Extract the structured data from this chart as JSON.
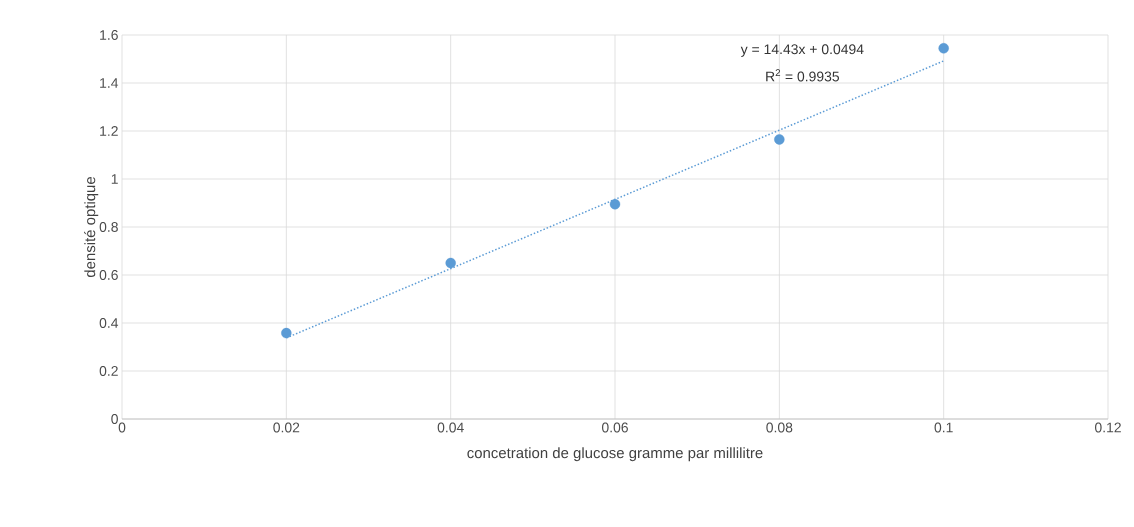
{
  "chart_data": {
    "type": "scatter",
    "xlabel": "concetration de glucose gramme par millilitre",
    "ylabel": "densité optique",
    "xlim": [
      0,
      0.12
    ],
    "xticks": [
      0,
      0.02,
      0.04,
      0.06,
      0.08,
      0.1,
      0.12
    ],
    "ylim": [
      0,
      1.6
    ],
    "yticks": [
      0,
      0.2,
      0.4,
      0.6,
      0.8,
      1,
      1.2,
      1.4,
      1.6
    ],
    "grid": true,
    "series": [
      {
        "color": "#5b9bd5",
        "marker": "circle",
        "x": [
          0.02,
          0.04,
          0.06,
          0.08,
          0.1
        ],
        "values": [
          0.358,
          0.65,
          0.895,
          1.165,
          1.545
        ]
      },
      {
        "type": "line",
        "color": "#5b9bd5",
        "marker": "none",
        "line_style": "dotted",
        "x": [
          0.02,
          0.1
        ],
        "values": [
          0.338,
          1.492
        ]
      }
    ],
    "annotations": [
      "y = 14.43x + 0.0494",
      "R$^{2}$ = 0.9935"
    ]
  }
}
